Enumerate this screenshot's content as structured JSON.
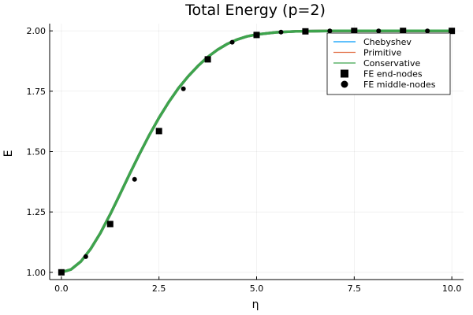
{
  "chart_data": {
    "type": "line",
    "title": "Total Energy (p=2)",
    "xlabel": "η",
    "ylabel": "E",
    "xlim": [
      -0.3,
      10.3
    ],
    "ylim": [
      0.97,
      2.03
    ],
    "x_ticks": [
      0,
      2.5,
      5,
      7.5,
      10
    ],
    "x_tick_labels": [
      "0.0",
      "2.5",
      "5.0",
      "7.5",
      "10.0"
    ],
    "y_ticks": [
      1.0,
      1.25,
      1.5,
      1.75,
      2.0
    ],
    "y_tick_labels": [
      "1.00",
      "1.25",
      "1.50",
      "1.75",
      "2.00"
    ],
    "grid": true,
    "legend_position": "top-right",
    "series": [
      {
        "name": "Chebyshev",
        "kind": "line",
        "color": "#009af9",
        "x": [
          0,
          0.25,
          0.5,
          0.75,
          1.0,
          1.25,
          1.5,
          1.75,
          2.0,
          2.25,
          2.5,
          2.75,
          3.0,
          3.25,
          3.5,
          3.75,
          4.0,
          4.25,
          4.5,
          4.75,
          5.0,
          5.5,
          6.0,
          6.5,
          7.0,
          7.5,
          8.0,
          8.5,
          9.0,
          9.5,
          10.0
        ],
        "y": [
          1.0,
          1.012,
          1.045,
          1.097,
          1.163,
          1.24,
          1.323,
          1.408,
          1.49,
          1.568,
          1.64,
          1.705,
          1.763,
          1.812,
          1.855,
          1.892,
          1.922,
          1.946,
          1.964,
          1.977,
          1.985,
          1.994,
          1.998,
          1.999,
          2.0,
          2.0,
          2.0,
          2.0,
          2.0,
          2.0,
          2.0
        ]
      },
      {
        "name": "Primitive",
        "kind": "line",
        "color": "#e26f46",
        "x": [
          0,
          0.25,
          0.5,
          0.75,
          1.0,
          1.25,
          1.5,
          1.75,
          2.0,
          2.25,
          2.5,
          2.75,
          3.0,
          3.25,
          3.5,
          3.75,
          4.0,
          4.25,
          4.5,
          4.75,
          5.0,
          5.5,
          6.0,
          6.5,
          7.0,
          7.5,
          8.0,
          8.5,
          9.0,
          9.5,
          10.0
        ],
        "y": [
          1.0,
          1.012,
          1.045,
          1.097,
          1.163,
          1.24,
          1.323,
          1.408,
          1.49,
          1.568,
          1.64,
          1.705,
          1.763,
          1.812,
          1.855,
          1.892,
          1.922,
          1.946,
          1.964,
          1.977,
          1.985,
          1.994,
          1.998,
          1.999,
          2.0,
          2.0,
          2.0,
          2.0,
          2.0,
          2.0,
          2.0
        ]
      },
      {
        "name": "Conservative",
        "kind": "line",
        "color": "#3da44d",
        "x": [
          0,
          0.25,
          0.5,
          0.75,
          1.0,
          1.25,
          1.5,
          1.75,
          2.0,
          2.25,
          2.5,
          2.75,
          3.0,
          3.25,
          3.5,
          3.75,
          4.0,
          4.25,
          4.5,
          4.75,
          5.0,
          5.5,
          6.0,
          6.5,
          7.0,
          7.5,
          8.0,
          8.5,
          9.0,
          9.5,
          10.0
        ],
        "y": [
          1.0,
          1.012,
          1.045,
          1.097,
          1.163,
          1.24,
          1.323,
          1.408,
          1.49,
          1.568,
          1.64,
          1.705,
          1.763,
          1.812,
          1.855,
          1.892,
          1.922,
          1.946,
          1.964,
          1.977,
          1.985,
          1.994,
          1.998,
          1.999,
          2.0,
          2.0,
          2.0,
          2.0,
          2.0,
          2.0,
          2.0
        ]
      },
      {
        "name": "FE end-nodes",
        "kind": "square",
        "color": "#000000",
        "x": [
          0,
          1.25,
          2.5,
          3.75,
          5.0,
          6.25,
          7.5,
          8.75,
          10.0
        ],
        "y": [
          1.0,
          1.2,
          1.585,
          1.882,
          1.983,
          1.998,
          2.0,
          2.0,
          2.0
        ]
      },
      {
        "name": "FE middle-nodes",
        "kind": "circle",
        "color": "#000000",
        "x": [
          0.625,
          1.875,
          3.125,
          4.375,
          5.625,
          6.875,
          8.125,
          9.375
        ],
        "y": [
          1.065,
          1.385,
          1.76,
          1.953,
          1.995,
          2.0,
          2.0,
          2.0
        ]
      }
    ]
  }
}
